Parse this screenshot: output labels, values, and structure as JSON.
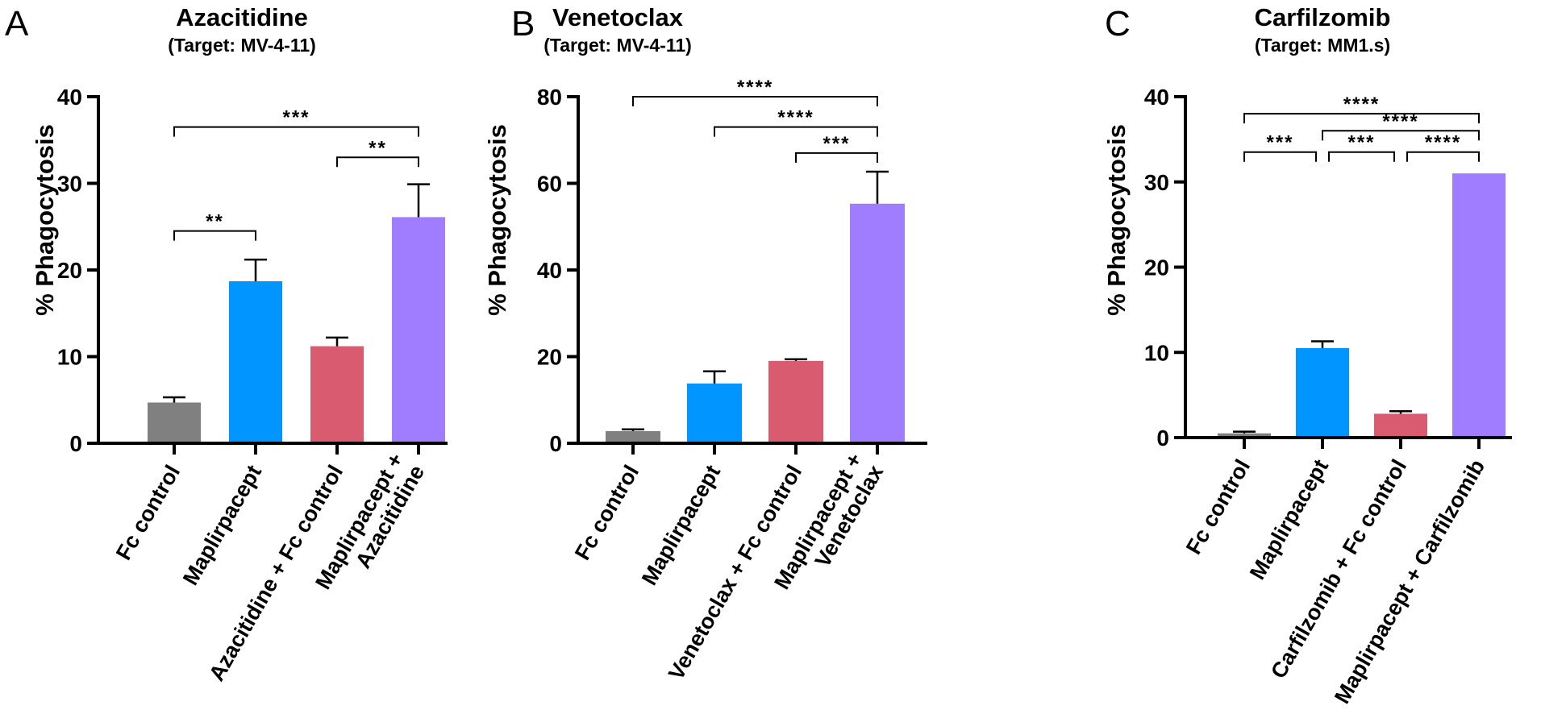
{
  "colors": {
    "fc_control": "#808080",
    "maplirpacept": "#0095ff",
    "combo_fc": "#d95b70",
    "combo": "#a07cff",
    "axis": "#000000"
  },
  "chart_data": [
    {
      "panel": "A",
      "type": "bar",
      "title": "Azacitidine",
      "subtitle": "(Target: MV-4-11)",
      "ylabel": "%  Phagocytosis",
      "xlabel": "",
      "ylim": [
        0,
        40
      ],
      "yticks": [
        0,
        10,
        20,
        30,
        40
      ],
      "categories": [
        "Fc  control",
        "Maplirpacept",
        "Azacitidine + Fc control",
        "Maplirpacept + Azacitidine"
      ],
      "category_lines": [
        [
          "Fc  control"
        ],
        [
          "Maplirpacept"
        ],
        [
          "Azacitidine + Fc control"
        ],
        [
          "Maplirpacept +",
          "Azacitidine"
        ]
      ],
      "values": [
        4.7,
        18.7,
        11.2,
        26.1
      ],
      "errors": [
        0.6,
        2.5,
        1.0,
        3.8
      ],
      "bar_colors": [
        "#808080",
        "#0095ff",
        "#d95b70",
        "#a07cff"
      ],
      "significance": [
        {
          "from": 0,
          "to": 3,
          "label": "***",
          "y": 36.5
        },
        {
          "from": 2,
          "to": 3,
          "label": "**",
          "y": 33.0
        },
        {
          "from": 0,
          "to": 1,
          "label": "**",
          "y": 24.5
        }
      ]
    },
    {
      "panel": "B",
      "type": "bar",
      "title": "Venetoclax",
      "subtitle": "(Target: MV-4-11)",
      "ylabel": "%  Phagocytosis",
      "xlabel": "",
      "ylim": [
        0,
        80
      ],
      "yticks": [
        0,
        20,
        40,
        60,
        80
      ],
      "categories": [
        "Fc  control",
        "Maplirpacept",
        "Venetoclax + Fc control",
        "Maplirpacept + Venetoclax"
      ],
      "category_lines": [
        [
          "Fc  control"
        ],
        [
          "Maplirpacept"
        ],
        [
          "Venetoclax + Fc control"
        ],
        [
          "Maplirpacept +",
          "Venetoclax"
        ]
      ],
      "values": [
        2.8,
        13.8,
        19.0,
        55.3
      ],
      "errors": [
        0.4,
        2.8,
        0.4,
        7.4
      ],
      "bar_colors": [
        "#808080",
        "#0095ff",
        "#d95b70",
        "#a07cff"
      ],
      "significance": [
        {
          "from": 0,
          "to": 3,
          "label": "****",
          "y": 80.0
        },
        {
          "from": 1,
          "to": 3,
          "label": "****",
          "y": 73.0
        },
        {
          "from": 2,
          "to": 3,
          "label": "***",
          "y": 67.0
        }
      ]
    },
    {
      "panel": "C",
      "type": "bar",
      "title": "Carfilzomib",
      "subtitle": "(Target: MM1.s)",
      "ylabel": "% Phagocytosis",
      "xlabel": "",
      "ylim": [
        0,
        40
      ],
      "yticks": [
        0,
        10,
        20,
        30,
        40
      ],
      "categories": [
        "Fc control",
        "Maplirpacept",
        "Carfilzomib + Fc control",
        "Maplirpacept + Carfilzomib"
      ],
      "category_lines": [
        [
          "Fc control"
        ],
        [
          "Maplirpacept"
        ],
        [
          "Carfilzomib + Fc control"
        ],
        [
          "Maplirpacept + Carfilzomib"
        ]
      ],
      "values": [
        0.5,
        10.5,
        2.8,
        31.0
      ],
      "errors": [
        0.2,
        0.8,
        0.3,
        0.0
      ],
      "bar_colors": [
        "#808080",
        "#0095ff",
        "#d95b70",
        "#a07cff"
      ],
      "significance": [
        {
          "from": 0,
          "to": 3,
          "label": "****",
          "y": 38.0
        },
        {
          "from": 1,
          "to": 3,
          "label": "****",
          "y": 36.0
        },
        {
          "from": 0,
          "to": 1,
          "label": "***",
          "y": 33.5
        },
        {
          "from": 1,
          "to": 2,
          "label": "***",
          "y": 33.5
        },
        {
          "from": 2,
          "to": 3,
          "label": "****",
          "y": 33.5
        }
      ]
    }
  ]
}
